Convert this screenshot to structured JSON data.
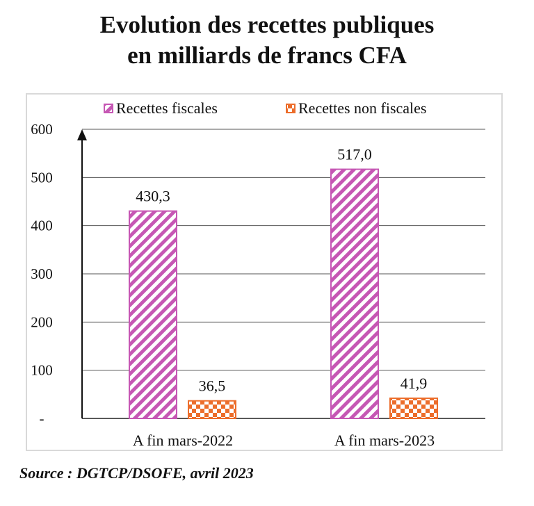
{
  "title": {
    "line1": "Evolution des recettes publiques",
    "line2": "en milliards de francs CFA"
  },
  "source": "Source : DGTCP/DSOFE, avril 2023",
  "chart_data": {
    "type": "bar",
    "title": "Evolution des recettes publiques en milliards de francs CFA",
    "categories": [
      "A fin mars-2022",
      "A fin mars-2023"
    ],
    "series": [
      {
        "name": "Recettes fiscales",
        "values": [
          430.3,
          517.0
        ],
        "labels": [
          "430,3",
          "517,0"
        ],
        "color": "#c657b4",
        "pattern": "diagonal-stripes"
      },
      {
        "name": "Recettes non fiscales",
        "values": [
          36.5,
          41.9
        ],
        "labels": [
          "36,5",
          "41,9"
        ],
        "color": "#ec6d2b",
        "pattern": "checkerboard"
      }
    ],
    "ylim": [
      0,
      600
    ],
    "yticks": [
      0,
      100,
      200,
      300,
      400,
      500,
      600
    ],
    "ytick_labels": [
      "-",
      "100",
      "200",
      "300",
      "400",
      "500",
      "600"
    ],
    "xlabel": "",
    "ylabel": "",
    "grid": true,
    "legend": "top"
  }
}
